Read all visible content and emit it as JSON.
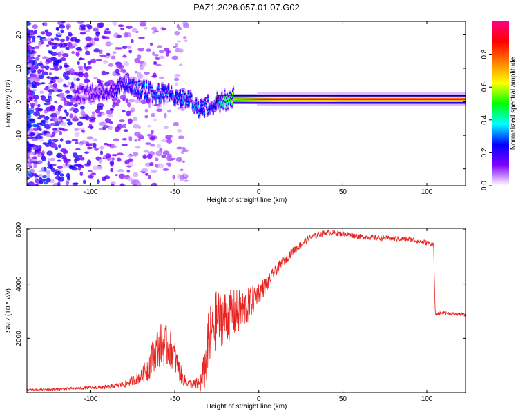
{
  "title": "PAZ1.2026.057.01.07.G02",
  "chart_data": [
    {
      "type": "heatmap",
      "name": "spectrogram",
      "title": "PAZ1.2026.057.01.07.G02",
      "xlabel": "Height of straight line (km)",
      "ylabel": "Frequency (Hz)",
      "xlim": [
        -138,
        123
      ],
      "ylim": [
        -25,
        24
      ],
      "xticks": [
        "-100",
        "-50",
        "0",
        "50",
        "100"
      ],
      "xtick_values": [
        -100,
        -50,
        0,
        50,
        100
      ],
      "yticks": [
        "20",
        "10",
        "0",
        "-10",
        "-20"
      ],
      "ytick_values": [
        20,
        10,
        0,
        -10,
        -20
      ],
      "ridge": {
        "x": [
          -100,
          -90,
          -80,
          -75,
          -70,
          -65,
          -60,
          -55,
          -50,
          -45,
          -40,
          -35,
          -30,
          -25,
          -20,
          -15,
          -10,
          -5,
          0,
          10,
          20,
          30,
          40,
          50,
          60,
          70,
          80,
          90,
          100,
          110,
          123
        ],
        "freq": [
          2.5,
          3,
          5,
          4.5,
          3.5,
          3,
          2.5,
          2.5,
          1.5,
          1,
          0,
          -2,
          -1,
          0,
          0.5,
          0.8,
          0.8,
          0.8,
          0.8,
          0.8,
          0.8,
          0.8,
          0.8,
          0.8,
          0.8,
          0.8,
          0.8,
          0.8,
          0.8,
          0.8,
          0.8
        ],
        "amplitude": [
          0.15,
          0.2,
          0.25,
          0.3,
          0.35,
          0.35,
          0.35,
          0.35,
          0.35,
          0.35,
          0.4,
          0.35,
          0.3,
          0.35,
          0.55,
          0.7,
          0.75,
          0.8,
          0.85,
          0.9,
          0.9,
          0.9,
          0.9,
          0.95,
          0.95,
          0.95,
          0.95,
          0.95,
          0.95,
          0.95,
          0.95
        ]
      }
    },
    {
      "type": "colorbar",
      "label": "Normalized spectral amplitude",
      "range": [
        0,
        1
      ],
      "ticks": [
        "0.0",
        "0.2",
        "0.4",
        "0.6",
        "0.8"
      ],
      "tick_values": [
        0,
        0.2,
        0.4,
        0.6,
        0.8
      ],
      "stops": [
        "#ffffff",
        "#8000ff",
        "#0000ff",
        "#00ffff",
        "#00ff00",
        "#ffff00",
        "#ff8000",
        "#ff0000",
        "#ff0080"
      ]
    },
    {
      "type": "line",
      "name": "snr",
      "xlabel": "Height of straight line (km)",
      "ylabel": "SNR (10 * v/v)",
      "xlim": [
        -138,
        123
      ],
      "ylim": [
        0,
        6050
      ],
      "xticks": [
        "-100",
        "-50",
        "0",
        "50",
        "100"
      ],
      "xtick_values": [
        -100,
        -50,
        0,
        50,
        100
      ],
      "yticks": [
        "2000",
        "4000",
        "6000"
      ],
      "ytick_values": [
        2000,
        4000,
        6000
      ],
      "color": "#e8221e",
      "series": [
        {
          "name": "SNR",
          "x": [
            -138,
            -120,
            -100,
            -90,
            -80,
            -70,
            -66,
            -62,
            -58,
            -55,
            -52,
            -50,
            -48,
            -45,
            -42,
            -38,
            -35,
            -32,
            -30,
            -28,
            -25,
            -20,
            -15,
            -10,
            -5,
            0,
            5,
            10,
            20,
            30,
            40,
            50,
            60,
            70,
            80,
            90,
            100,
            104,
            105,
            106,
            110,
            115,
            120,
            123
          ],
          "y": [
            100,
            120,
            180,
            200,
            300,
            600,
            900,
            1500,
            1800,
            1700,
            1600,
            1300,
            900,
            500,
            350,
            300,
            300,
            900,
            1800,
            2300,
            2700,
            2800,
            2900,
            3000,
            3300,
            3700,
            4000,
            4500,
            5200,
            5700,
            5900,
            5850,
            5750,
            5700,
            5680,
            5650,
            5520,
            5450,
            2850,
            2900,
            2950,
            2900,
            2900,
            2850
          ],
          "noise": [
            30,
            40,
            60,
            80,
            120,
            250,
            500,
            700,
            800,
            800,
            700,
            600,
            450,
            250,
            150,
            200,
            350,
            800,
            1200,
            1200,
            1100,
            1000,
            900,
            800,
            600,
            400,
            300,
            200,
            150,
            120,
            100,
            100,
            100,
            100,
            100,
            100,
            100,
            100,
            60,
            60,
            60,
            60,
            60,
            60
          ]
        }
      ]
    }
  ]
}
